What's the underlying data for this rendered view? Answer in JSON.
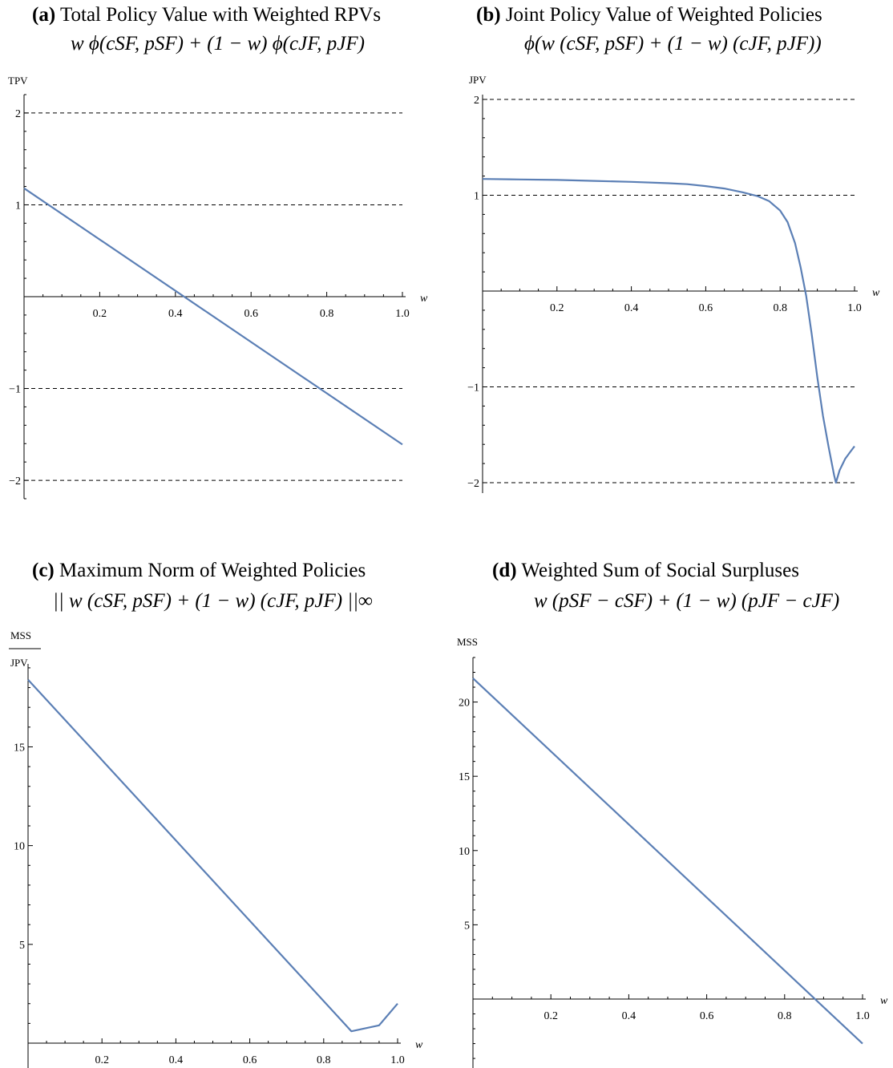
{
  "chart_data": [
    {
      "id": "a",
      "type": "line",
      "title_letter": "(a)",
      "title": "Total Policy Value with Weighted RPVs",
      "formula": "w ϕ(cSF, pSF) + (1 − w) ϕ(cJF, pJF)",
      "ylabel": "TPV",
      "ylabel_denominator": "",
      "xlabel": "w",
      "xlim": [
        0,
        1.0
      ],
      "ylim": [
        -2.25,
        2.2
      ],
      "xticks": [
        0.2,
        0.4,
        0.6,
        0.8,
        1.0
      ],
      "xtick_labels": [
        "0.2",
        "0.4",
        "0.6",
        "0.8",
        "1.0"
      ],
      "yticks": [
        -2,
        -1,
        1,
        2
      ],
      "ytick_labels": [
        "−2",
        "−1",
        "1",
        "2"
      ],
      "reference_lines": [
        2,
        1,
        -1,
        -2
      ],
      "series": [
        {
          "color": "#5b7fb5",
          "x": [
            0,
            1.0
          ],
          "y": [
            1.18,
            -1.61
          ]
        }
      ]
    },
    {
      "id": "b",
      "type": "line",
      "title_letter": "(b)",
      "title": "Joint Policy Value of Weighted Policies",
      "formula": "ϕ(w (cSF, pSF) + (1 − w) (cJF, pJF))",
      "ylabel": "JPV",
      "ylabel_denominator": "",
      "xlabel": "w",
      "xlim": [
        0,
        1.0
      ],
      "ylim": [
        -2.05,
        2.05
      ],
      "xticks": [
        0.2,
        0.4,
        0.6,
        0.8,
        1.0
      ],
      "xtick_labels": [
        "0.2",
        "0.4",
        "0.6",
        "0.8",
        "1.0"
      ],
      "yticks": [
        -2,
        -1,
        1,
        2
      ],
      "ytick_labels": [
        "−2",
        "−1",
        "1",
        "2"
      ],
      "reference_lines": [
        2,
        1,
        -1,
        -2
      ],
      "series": [
        {
          "color": "#5b7fb5",
          "x": [
            0,
            0.1,
            0.2,
            0.3,
            0.4,
            0.5,
            0.55,
            0.6,
            0.65,
            0.7,
            0.74,
            0.77,
            0.8,
            0.82,
            0.84,
            0.855,
            0.87,
            0.885,
            0.9,
            0.915,
            0.93,
            0.945,
            0.95,
            0.96,
            0.975,
            0.99,
            1.0
          ],
          "y": [
            1.17,
            1.165,
            1.16,
            1.15,
            1.14,
            1.125,
            1.115,
            1.095,
            1.07,
            1.03,
            0.99,
            0.94,
            0.84,
            0.72,
            0.5,
            0.25,
            -0.05,
            -0.45,
            -0.9,
            -1.3,
            -1.62,
            -1.92,
            -2.0,
            -1.87,
            -1.75,
            -1.67,
            -1.62
          ]
        }
      ]
    },
    {
      "id": "c",
      "type": "line",
      "title_letter": "(c)",
      "title": "Maximum Norm of Weighted Policies",
      "formula": "|| w (cSF, pSF) + (1 − w) (cJF, pJF) ||∞",
      "ylabel": "MSS",
      "ylabel_denominator": "JPV",
      "xlabel": "w",
      "xlim": [
        0,
        1.0
      ],
      "ylim": [
        -0.6,
        19.2
      ],
      "xticks": [
        0.2,
        0.4,
        0.6,
        0.8,
        1.0
      ],
      "xtick_labels": [
        "0.2",
        "0.4",
        "0.6",
        "0.8",
        "1.0"
      ],
      "yticks": [
        5,
        10,
        15
      ],
      "ytick_labels": [
        "5",
        "10",
        "15"
      ],
      "reference_lines": [],
      "series": [
        {
          "color": "#5b7fb5",
          "x": [
            0,
            0.875,
            0.95,
            1.0
          ],
          "y": [
            18.4,
            0.6,
            0.9,
            2.0
          ]
        }
      ]
    },
    {
      "id": "d",
      "type": "line",
      "title_letter": "(d)",
      "title": "Weighted Sum of Social Surpluses",
      "formula": "w (pSF − cSF) + (1 − w) (pJF − cJF)",
      "ylabel": "MSS",
      "ylabel_denominator": "",
      "xlabel": "w",
      "xlim": [
        0,
        1.0
      ],
      "ylim": [
        -4.5,
        23.0
      ],
      "xticks": [
        0.2,
        0.4,
        0.6,
        0.8,
        1.0
      ],
      "xtick_labels": [
        "0.2",
        "0.4",
        "0.6",
        "0.8",
        "1.0"
      ],
      "yticks": [
        5,
        10,
        15,
        20
      ],
      "ytick_labels": [
        "5",
        "10",
        "15",
        "20"
      ],
      "reference_lines": [],
      "series": [
        {
          "color": "#5b7fb5",
          "x": [
            0,
            1.0
          ],
          "y": [
            21.6,
            -3.0
          ]
        }
      ]
    }
  ]
}
